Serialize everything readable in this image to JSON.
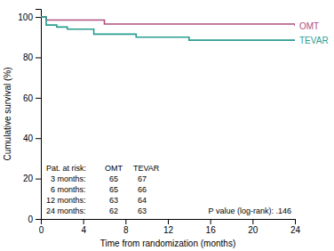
{
  "chart_data": {
    "type": "step",
    "xlabel": "Time from randomization (months)",
    "ylabel": "Cumulative survival (%)",
    "series": [
      {
        "name": "OMT",
        "color": "#b05080",
        "x": [
          0,
          0.5,
          1.5,
          6,
          24
        ],
        "values": [
          100,
          98.5,
          98.5,
          96.5,
          95.5
        ]
      },
      {
        "name": "TEVAR",
        "color": "#2a9d8f",
        "x": [
          0,
          0.5,
          1.5,
          2.5,
          5,
          9,
          14,
          24
        ],
        "values": [
          100,
          96.0,
          95.0,
          94.0,
          91.5,
          90.0,
          88.5,
          88.5
        ]
      }
    ],
    "xlim": [
      0,
      24
    ],
    "ylim": [
      0,
      104
    ],
    "xticks": [
      0,
      4,
      8,
      12,
      16,
      20,
      24
    ],
    "yticks": [
      0,
      20,
      40,
      60,
      80,
      100
    ],
    "risk_table": {
      "title": "Pat. at risk:",
      "columns": [
        "OMT",
        "TEVAR"
      ],
      "rows": [
        {
          "label": "  3 months:",
          "values": [
            65,
            67
          ]
        },
        {
          "label": "  6 months:",
          "values": [
            65,
            66
          ]
        },
        {
          "label": "12 months:",
          "values": [
            63,
            64
          ]
        },
        {
          "label": "24 months:",
          "values": [
            62,
            63
          ]
        }
      ]
    },
    "annotations": [
      "P value (log-rank): .146"
    ]
  }
}
